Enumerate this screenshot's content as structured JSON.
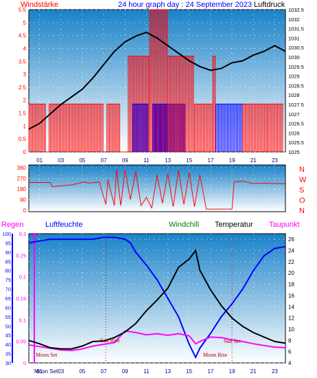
{
  "header": {
    "left_label": "Windstärke",
    "title": "24 hour graph day : 24 September 2023",
    "right_label": "Luftdruck"
  },
  "colors": {
    "bg_top": "#1a82c8",
    "bg_bottom": "#ffffff",
    "wind_red": "#ff0000",
    "wind_blue": "#0000ff",
    "pressure": "#000000",
    "humidity": "#0000ff",
    "temperature": "#000000",
    "dewpoint": "#ff00ff",
    "sun": "#a00000",
    "border": "#000000"
  },
  "legend": {
    "rain": "Regen",
    "humidity": "Luftfeuchte",
    "windchill": "Windchill",
    "temperature": "Temperatur",
    "dewpoint": "Taupunkt"
  },
  "compass": [
    "N",
    "W",
    "S",
    "O",
    "N"
  ],
  "chart_data": [
    {
      "type": "line",
      "name_left": "Windstärke",
      "name_right": "Luftdruck",
      "x_ticks": [
        "01",
        "03",
        "05",
        "07",
        "09",
        "11",
        "13",
        "15",
        "17",
        "19",
        "21",
        "23"
      ],
      "y_left_ticks": [
        "0",
        "0.5",
        "1",
        "1.5",
        "2",
        "2.5",
        "3",
        "3.5",
        "4",
        "4.5",
        "5",
        "5.5"
      ],
      "y_left_range": [
        0,
        5.5
      ],
      "y_right_ticks": [
        "1025",
        "1025.5",
        "1026",
        "1026.5",
        "1027",
        "1027.5",
        "1028",
        "1028.5",
        "1029",
        "1029.5",
        "1030",
        "1030.5",
        "1031",
        "1031.5",
        "1032",
        "1032.5"
      ],
      "y_right_range": [
        1025,
        1032.5
      ],
      "wind_gust_levels": [
        0,
        1.85,
        3.7,
        5.5
      ],
      "wind_segments": [
        {
          "from": 0.0,
          "to": 1.6,
          "level": 1.85,
          "color": "red"
        },
        {
          "from": 1.6,
          "to": 1.9,
          "level": 0,
          "color": "red"
        },
        {
          "from": 1.9,
          "to": 7.0,
          "level": 1.85,
          "color": "red"
        },
        {
          "from": 7.0,
          "to": 7.3,
          "level": 0,
          "color": "blue"
        },
        {
          "from": 7.3,
          "to": 8.5,
          "level": 1.85,
          "color": "red"
        },
        {
          "from": 8.5,
          "to": 9.3,
          "level": 0,
          "color": "red"
        },
        {
          "from": 9.3,
          "to": 11.3,
          "level": 3.7,
          "color": "red"
        },
        {
          "from": 9.7,
          "to": 11.2,
          "level": 1.85,
          "color": "blue"
        },
        {
          "from": 11.3,
          "to": 13.0,
          "level": 5.5,
          "color": "red"
        },
        {
          "from": 11.6,
          "to": 14.6,
          "level": 1.85,
          "color": "blue"
        },
        {
          "from": 13.0,
          "to": 15.5,
          "level": 3.7,
          "color": "red"
        },
        {
          "from": 15.5,
          "to": 17.2,
          "level": 1.85,
          "color": "red"
        },
        {
          "from": 17.2,
          "to": 17.5,
          "level": 3.7,
          "color": "red"
        },
        {
          "from": 17.5,
          "to": 20.0,
          "level": 1.85,
          "color": "blue"
        },
        {
          "from": 20.0,
          "to": 22.3,
          "level": 1.85,
          "color": "red"
        },
        {
          "from": 22.3,
          "to": 23.8,
          "level": 1.85,
          "color": "red"
        }
      ],
      "pressure": [
        [
          0,
          1026.2
        ],
        [
          1,
          1026.5
        ],
        [
          2,
          1027.0
        ],
        [
          3,
          1027.5
        ],
        [
          4,
          1027.9
        ],
        [
          5,
          1028.3
        ],
        [
          6,
          1028.9
        ],
        [
          7,
          1029.6
        ],
        [
          8,
          1030.3
        ],
        [
          9,
          1030.8
        ],
        [
          10,
          1031.1
        ],
        [
          11,
          1031.3
        ],
        [
          12,
          1031.0
        ],
        [
          13,
          1030.6
        ],
        [
          14,
          1030.2
        ],
        [
          15,
          1029.8
        ],
        [
          16,
          1029.5
        ],
        [
          17,
          1029.3
        ],
        [
          18,
          1029.4
        ],
        [
          19,
          1029.7
        ],
        [
          20,
          1029.8
        ],
        [
          21,
          1030.1
        ],
        [
          22,
          1030.3
        ],
        [
          23,
          1030.6
        ],
        [
          24,
          1030.3
        ]
      ]
    },
    {
      "type": "line",
      "name": "Windrichtung",
      "y_ticks": [
        "360",
        "270",
        "180",
        "90",
        "0"
      ],
      "y_range": [
        0,
        360
      ],
      "direction": [
        [
          0,
          235
        ],
        [
          2,
          235
        ],
        [
          2.2,
          200
        ],
        [
          4,
          215
        ],
        [
          5.2,
          240
        ],
        [
          5.6,
          230
        ],
        [
          6.6,
          240
        ],
        [
          7.2,
          50
        ],
        [
          7.4,
          260
        ],
        [
          8,
          40
        ],
        [
          8.2,
          345
        ],
        [
          8.6,
          40
        ],
        [
          9,
          340
        ],
        [
          9.5,
          90
        ],
        [
          10,
          330
        ],
        [
          10.5,
          40
        ],
        [
          11,
          110
        ],
        [
          11.5,
          20
        ],
        [
          12,
          300
        ],
        [
          12.5,
          60
        ],
        [
          13,
          310
        ],
        [
          13.5,
          30
        ],
        [
          14,
          340
        ],
        [
          14.5,
          50
        ],
        [
          15,
          320
        ],
        [
          15.5,
          30
        ],
        [
          16,
          300
        ],
        [
          16.6,
          10
        ],
        [
          17,
          10
        ],
        [
          18,
          10
        ],
        [
          19,
          10
        ],
        [
          19.2,
          240
        ],
        [
          20,
          245
        ],
        [
          21,
          225
        ],
        [
          22,
          230
        ],
        [
          23,
          225
        ],
        [
          24,
          225
        ]
      ]
    },
    {
      "type": "line",
      "x_ticks": [
        "01",
        "03",
        "05",
        "07",
        "09",
        "11",
        "13",
        "15",
        "17",
        "19",
        "21",
        "23"
      ],
      "y_left_rain_ticks": [
        "0",
        "0.05",
        "0.1",
        "0.15",
        "0.2",
        "0.25",
        "0.3"
      ],
      "y_left_rain_range": [
        0,
        0.3
      ],
      "y_left_humidity_ticks": [
        "30",
        "35",
        "40",
        "45",
        "50",
        "55",
        "60",
        "65",
        "70",
        "75",
        "80",
        "85",
        "90",
        "95",
        "100"
      ],
      "y_left_humidity_range": [
        30,
        100
      ],
      "y_right_ticks": [
        "4",
        "6",
        "8",
        "10",
        "12",
        "14",
        "16",
        "18",
        "20",
        "22",
        "24",
        "26"
      ],
      "y_right_range": [
        4,
        27
      ],
      "annotations": [
        "Moon Set",
        "Sun Rise",
        "Moon Rise",
        "Sun Set"
      ],
      "bottom_note": "Moon Set",
      "humidity": [
        [
          0,
          95
        ],
        [
          1,
          96
        ],
        [
          2,
          97
        ],
        [
          3,
          97
        ],
        [
          4,
          97
        ],
        [
          5,
          97
        ],
        [
          6,
          97
        ],
        [
          7,
          98
        ],
        [
          8,
          98
        ],
        [
          9,
          97
        ],
        [
          9.5,
          95
        ],
        [
          10,
          90
        ],
        [
          11,
          83
        ],
        [
          12,
          75
        ],
        [
          13,
          65
        ],
        [
          14,
          55
        ],
        [
          15,
          40
        ],
        [
          15.6,
          33
        ],
        [
          16,
          38
        ],
        [
          17,
          46
        ],
        [
          18,
          55
        ],
        [
          19,
          62
        ],
        [
          20,
          70
        ],
        [
          21,
          80
        ],
        [
          22,
          88
        ],
        [
          23,
          92
        ],
        [
          24,
          93
        ]
      ],
      "temperature": [
        [
          0,
          8.0
        ],
        [
          1,
          7.4
        ],
        [
          2,
          6.7
        ],
        [
          3,
          6.5
        ],
        [
          4,
          6.5
        ],
        [
          5,
          7.0
        ],
        [
          6,
          7.8
        ],
        [
          7,
          7.9
        ],
        [
          8,
          8.5
        ],
        [
          9,
          9.5
        ],
        [
          10,
          11.0
        ],
        [
          11,
          13.3
        ],
        [
          12,
          15.2
        ],
        [
          13,
          17.3
        ],
        [
          14,
          21.0
        ],
        [
          15,
          22.5
        ],
        [
          15.6,
          24.0
        ],
        [
          16,
          20.5
        ],
        [
          17,
          17.0
        ],
        [
          18,
          14.2
        ],
        [
          19,
          12.0
        ],
        [
          20,
          10.5
        ],
        [
          21,
          9.4
        ],
        [
          22,
          8.6
        ],
        [
          23,
          7.8
        ],
        [
          24,
          7.5
        ]
      ],
      "dewpoint": [
        [
          0,
          7.2
        ],
        [
          1,
          6.9
        ],
        [
          2,
          6.6
        ],
        [
          3,
          6.3
        ],
        [
          4,
          6.2
        ],
        [
          5,
          6.5
        ],
        [
          6,
          7.0
        ],
        [
          7,
          7.3
        ],
        [
          8,
          7.6
        ],
        [
          9,
          9.7
        ],
        [
          10,
          9.4
        ],
        [
          11,
          9.0
        ],
        [
          12,
          9.2
        ],
        [
          13,
          8.9
        ],
        [
          14,
          9.2
        ],
        [
          15,
          8.8
        ],
        [
          15.6,
          7.4
        ],
        [
          16,
          7.8
        ],
        [
          17,
          8.6
        ],
        [
          18,
          8.5
        ],
        [
          19,
          8.1
        ],
        [
          20,
          7.8
        ],
        [
          21,
          7.4
        ],
        [
          22,
          7.1
        ],
        [
          23,
          6.8
        ],
        [
          24,
          6.7
        ]
      ],
      "rain": 0
    }
  ]
}
